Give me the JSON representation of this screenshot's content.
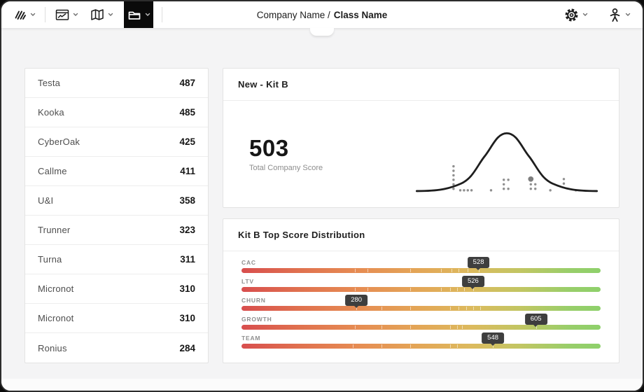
{
  "header": {
    "title_prefix": "Company Name /",
    "title_emphasis": "Class Name"
  },
  "toolbar": {
    "active_tool": "folder",
    "icons": [
      "logo-scribble",
      "chart-window",
      "map-book",
      "folder",
      "settings-gear",
      "user-person"
    ]
  },
  "company_list": {
    "items": [
      {
        "name": "Testa",
        "score": "487"
      },
      {
        "name": "Kooka",
        "score": "485"
      },
      {
        "name": "CyberOak",
        "score": "425"
      },
      {
        "name": "Callme",
        "score": "411"
      },
      {
        "name": "U&I",
        "score": "358"
      },
      {
        "name": "Trunner",
        "score": "323"
      },
      {
        "name": "Turna",
        "score": "311"
      },
      {
        "name": "Micronot",
        "score": "310"
      },
      {
        "name": "Micronot",
        "score": "310"
      },
      {
        "name": "Ronius",
        "score": "284"
      }
    ]
  },
  "score_panel": {
    "title": "New - Kit B",
    "total_score": "503",
    "total_score_label": "Total Company Score"
  },
  "distribution_panel": {
    "title": "Kit B Top Score Distribution",
    "badge_color": "#3e3e3e",
    "gradient": [
      "#d84e4e",
      "#e68d53",
      "#dcba5e",
      "#8ed06b"
    ],
    "bars": [
      {
        "label": "CAC",
        "value": "528",
        "position_pct": 66,
        "ticks": [
          31.5,
          35,
          47,
          55.5,
          58.5,
          60.5,
          63,
          66
        ]
      },
      {
        "label": "LTV",
        "value": "526",
        "position_pct": 64.5,
        "ticks": [
          31.5,
          35,
          47,
          55.5,
          58,
          60,
          62,
          64.5
        ]
      },
      {
        "label": "CHURN",
        "value": "280",
        "position_pct": 32,
        "ticks": [
          32,
          39,
          47,
          58,
          60.5,
          62.5,
          64.5,
          66.5
        ]
      },
      {
        "label": "GROWTH",
        "value": "605",
        "position_pct": 82,
        "ticks": [
          31.5,
          39,
          47,
          58,
          60,
          61.5,
          82
        ]
      },
      {
        "label": "TEAM",
        "value": "548",
        "position_pct": 70,
        "ticks": [
          31,
          39,
          47,
          58,
          60,
          70
        ]
      }
    ]
  },
  "chart_data": [
    {
      "type": "line",
      "title": "New - Kit B",
      "ylabel": "",
      "xlabel": "",
      "annotation_value": 503,
      "annotation_label": "Total Company Score",
      "curve": "normal-distribution bell curve, no axis labels",
      "legend": "none",
      "highlight_dot": [
        157,
        77
      ],
      "dots": [
        [
          54,
          60
        ],
        [
          54,
          66
        ],
        [
          54,
          72
        ],
        [
          54,
          78
        ],
        [
          54,
          84
        ],
        [
          54,
          90
        ],
        [
          63,
          92
        ],
        [
          68,
          92
        ],
        [
          73,
          92
        ],
        [
          78,
          92
        ],
        [
          104,
          92
        ],
        [
          121,
          78
        ],
        [
          121,
          84
        ],
        [
          121,
          90
        ],
        [
          127,
          78
        ],
        [
          127,
          90
        ],
        [
          157,
          84
        ],
        [
          157,
          90
        ],
        [
          163,
          84
        ],
        [
          163,
          90
        ],
        [
          183,
          92
        ],
        [
          201,
          77
        ],
        [
          201,
          83
        ],
        [
          217,
          92
        ]
      ]
    },
    {
      "type": "bar",
      "title": "Kit B Top Score Distribution",
      "categories": [
        "CAC",
        "LTV",
        "CHURN",
        "GROWTH",
        "TEAM"
      ],
      "values": [
        528,
        526,
        280,
        605,
        548
      ],
      "marker_position_pct": [
        66,
        64.5,
        32,
        82,
        70
      ],
      "note": "values displayed as dark tooltips pointing at position on red-to-green gradient scales",
      "legend_position": "none"
    }
  ]
}
